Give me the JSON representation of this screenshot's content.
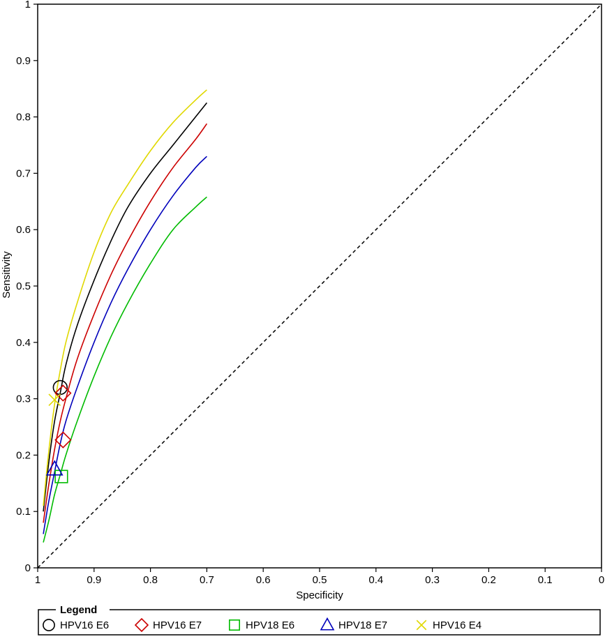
{
  "chart_data": {
    "type": "line",
    "xlabel": "Specificity",
    "ylabel": "Sensitivity",
    "xlim": [
      1,
      0
    ],
    "ylim": [
      0,
      1
    ],
    "x_ticks": [
      "1",
      "0.9",
      "0.8",
      "0.7",
      "0.6",
      "0.5",
      "0.4",
      "0.3",
      "0.2",
      "0.1",
      "0"
    ],
    "y_ticks": [
      "0",
      "0.1",
      "0.2",
      "0.3",
      "0.4",
      "0.5",
      "0.6",
      "0.7",
      "0.8",
      "0.9",
      "1"
    ],
    "x_tick_values": [
      1,
      0.9,
      0.8,
      0.7,
      0.6,
      0.5,
      0.4,
      0.3,
      0.2,
      0.1,
      0
    ],
    "y_tick_values": [
      0,
      0.1,
      0.2,
      0.3,
      0.4,
      0.5,
      0.6,
      0.7,
      0.8,
      0.9,
      1
    ],
    "reference_line": {
      "from": [
        1,
        0
      ],
      "to": [
        0,
        1
      ],
      "style": "dashed"
    },
    "legend": {
      "title": "Legend",
      "placement": "bottom"
    },
    "series": [
      {
        "name": "HPV16 E6",
        "color": "#000000",
        "marker": "circle",
        "curve": [
          [
            0.99,
            0.1
          ],
          [
            0.98,
            0.19
          ],
          [
            0.97,
            0.26
          ],
          [
            0.96,
            0.31
          ],
          [
            0.95,
            0.36
          ],
          [
            0.93,
            0.43
          ],
          [
            0.9,
            0.51
          ],
          [
            0.87,
            0.58
          ],
          [
            0.84,
            0.64
          ],
          [
            0.8,
            0.7
          ],
          [
            0.76,
            0.75
          ],
          [
            0.72,
            0.8
          ],
          [
            0.7,
            0.825
          ]
        ],
        "points": [
          [
            0.96,
            0.32
          ]
        ]
      },
      {
        "name": "HPV16 E7",
        "color": "#cc0000",
        "marker": "diamond",
        "curve": [
          [
            0.99,
            0.08
          ],
          [
            0.98,
            0.15
          ],
          [
            0.97,
            0.21
          ],
          [
            0.96,
            0.26
          ],
          [
            0.95,
            0.3
          ],
          [
            0.93,
            0.37
          ],
          [
            0.9,
            0.45
          ],
          [
            0.87,
            0.52
          ],
          [
            0.84,
            0.58
          ],
          [
            0.8,
            0.65
          ],
          [
            0.76,
            0.71
          ],
          [
            0.72,
            0.76
          ],
          [
            0.7,
            0.788
          ]
        ],
        "points": [
          [
            0.955,
            0.31
          ],
          [
            0.955,
            0.227
          ]
        ]
      },
      {
        "name": "HPV18 E6",
        "color": "#00bb00",
        "marker": "square",
        "curve": [
          [
            0.99,
            0.045
          ],
          [
            0.98,
            0.085
          ],
          [
            0.97,
            0.13
          ],
          [
            0.96,
            0.165
          ],
          [
            0.95,
            0.2
          ],
          [
            0.93,
            0.26
          ],
          [
            0.9,
            0.34
          ],
          [
            0.87,
            0.41
          ],
          [
            0.84,
            0.47
          ],
          [
            0.8,
            0.54
          ],
          [
            0.76,
            0.6
          ],
          [
            0.72,
            0.64
          ],
          [
            0.7,
            0.658
          ]
        ],
        "points": [
          [
            0.958,
            0.162
          ]
        ]
      },
      {
        "name": "HPV18 E7",
        "color": "#0000bb",
        "marker": "triangle",
        "curve": [
          [
            0.99,
            0.06
          ],
          [
            0.98,
            0.12
          ],
          [
            0.97,
            0.17
          ],
          [
            0.96,
            0.22
          ],
          [
            0.95,
            0.26
          ],
          [
            0.93,
            0.32
          ],
          [
            0.9,
            0.4
          ],
          [
            0.87,
            0.47
          ],
          [
            0.84,
            0.53
          ],
          [
            0.8,
            0.6
          ],
          [
            0.76,
            0.66
          ],
          [
            0.72,
            0.71
          ],
          [
            0.7,
            0.73
          ]
        ],
        "points": [
          [
            0.97,
            0.175
          ]
        ]
      },
      {
        "name": "HPV16 E4",
        "color": "#e0d800",
        "marker": "x",
        "curve": [
          [
            0.99,
            0.11
          ],
          [
            0.98,
            0.21
          ],
          [
            0.97,
            0.29
          ],
          [
            0.96,
            0.35
          ],
          [
            0.95,
            0.4
          ],
          [
            0.93,
            0.47
          ],
          [
            0.9,
            0.56
          ],
          [
            0.87,
            0.63
          ],
          [
            0.84,
            0.68
          ],
          [
            0.8,
            0.74
          ],
          [
            0.76,
            0.79
          ],
          [
            0.72,
            0.83
          ],
          [
            0.7,
            0.848
          ]
        ],
        "points": [
          [
            0.97,
            0.298
          ]
        ]
      }
    ]
  }
}
